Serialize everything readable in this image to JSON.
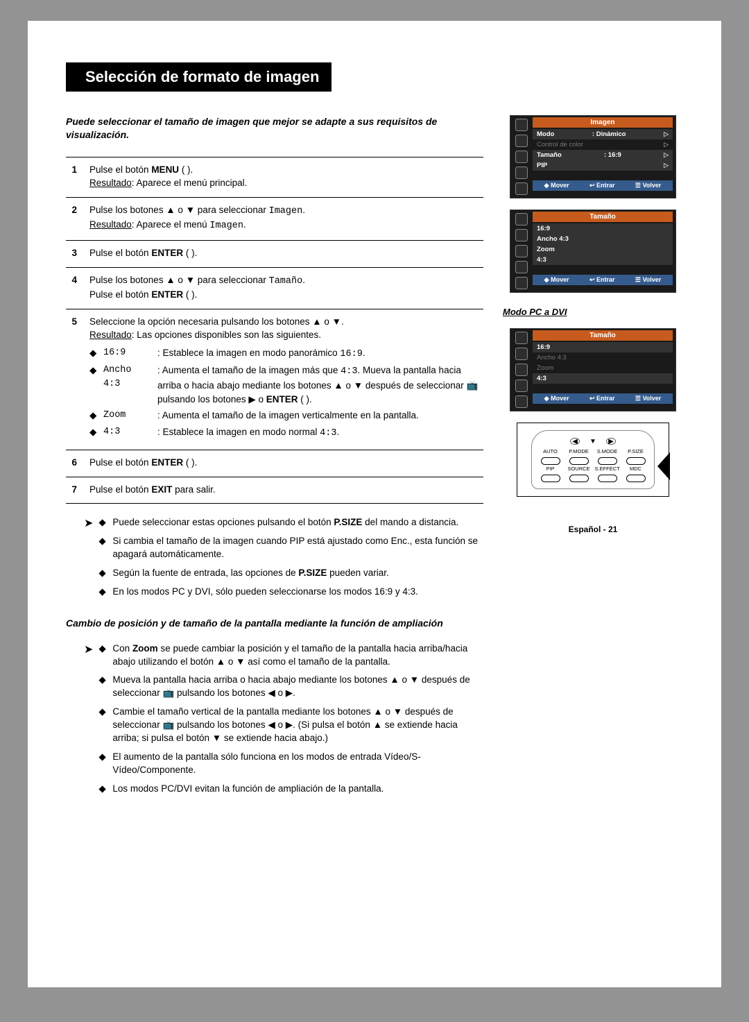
{
  "title": "Selección de formato de imagen",
  "intro": "Puede seleccionar el tamaño de imagen que mejor se adapte a sus requisitos de visualización.",
  "steps": {
    "s1_a": "Pulse el botón ",
    "s1_menu": "MENU",
    "s1_b": " (        ).",
    "s1_res_lbl": "Resultado",
    "s1_res": ": Aparece el menú principal.",
    "s2_a": "Pulse los botones ▲ o ▼ para seleccionar ",
    "s2_img": "Imagen",
    "s2_b": ".",
    "s2_res_lbl": "Resultado",
    "s2_res_a": ": Aparece el menú ",
    "s2_res_b": "Imagen",
    "s2_res_c": ".",
    "s3_a": "Pulse el botón ",
    "s3_enter": "ENTER",
    "s3_b": " (      ).",
    "s4_a": "Pulse los botones ▲ o ▼ para seleccionar ",
    "s4_t": "Tamaño",
    "s4_b": ".",
    "s4_c": "Pulse el botón ",
    "s4_enter": "ENTER",
    "s4_d": " (      ).",
    "s5_a": "Seleccione la opción necesaria pulsando los botones ▲ o ▼.",
    "s5_res_lbl": "Resultado",
    "s5_res": ": Las opciones disponibles son las siguientes.",
    "opt_169_lbl": "16:9",
    "opt_169_txt_a": ": Establece la imagen en modo panorámico ",
    "opt_169_txt_b": "16:9",
    "opt_169_txt_c": ".",
    "opt_a43_lbl": "Ancho 4:3",
    "opt_a43_txt_a": ": Aumenta el tamaño de la imagen más que ",
    "opt_a43_txt_b": "4:3",
    "opt_a43_txt_c": ". Mueva la pantalla hacia arriba o hacia abajo mediante los botones ▲ o ▼ después de seleccionar 📺 pulsando los botones ▶ o ",
    "opt_a43_enter": "ENTER",
    "opt_a43_txt_d": " (      ).",
    "opt_zoom_lbl": "Zoom",
    "opt_zoom_txt": ": Aumenta el tamaño de la imagen verticalmente en la pantalla.",
    "opt_43_lbl": "4:3",
    "opt_43_txt_a": ": Establece la imagen en modo normal ",
    "opt_43_txt_b": "4:3",
    "opt_43_txt_c": ".",
    "s6_a": "Pulse el botón ",
    "s6_enter": "ENTER",
    "s6_b": " (      ).",
    "s7_a": "Pulse el botón ",
    "s7_exit": "EXIT",
    "s7_b": " para salir."
  },
  "tips1": {
    "t1_a": "Puede seleccionar estas opciones pulsando el botón ",
    "t1_b": "P.SIZE",
    "t1_c": " del mando a distancia.",
    "t2": "Si cambia el tamaño de la imagen cuando PIP está ajustado como Enc., esta función se apagará automáticamente.",
    "t3_a": "Según la fuente de entrada, las opciones de ",
    "t3_b": "P.SIZE",
    "t3_c": " pueden variar.",
    "t4": "En los modos PC y DVI, sólo pueden seleccionarse los modos 16:9 y 4:3."
  },
  "subhead": "Cambio de posición y de tamaño de la pantalla mediante la función de ampliación",
  "tips2": {
    "t1_a": "Con ",
    "t1_b": "Zoom",
    "t1_c": " se puede cambiar la posición y el tamaño de la pantalla hacia arriba/hacia abajo utilizando el botón ▲ o ▼ así como el tamaño de la pantalla.",
    "t2": "Mueva la pantalla hacia arriba o hacia abajo mediante los botones ▲ o ▼ después de seleccionar 📺 pulsando los botones ◀ o ▶.",
    "t3": "Cambie el tamaño vertical de la pantalla mediante los botones ▲ o ▼ después de seleccionar 📺 pulsando los botones ◀ o ▶. (Si pulsa el botón ▲ se extiende hacia arriba; si pulsa el botón ▼ se extiende hacia abajo.)",
    "t4": "El aumento de la pantalla sólo funciona en los modos de entrada Vídeo/S-Vídeo/Componente.",
    "t5": "Los modos PC/DVI evitan la función de ampliación de la pantalla."
  },
  "osd1": {
    "title": "Imagen",
    "modo": "Modo",
    "modo_val": ": Dinámico",
    "control": "Control de color",
    "tamano": "Tamaño",
    "tamano_val": ": 16:9",
    "pip": "PIP",
    "mover": "Mover",
    "entrar": "Entrar",
    "volver": "Volver"
  },
  "osd2": {
    "title": "Tamaño",
    "i1": "16:9",
    "i2": "Ancho 4:3",
    "i3": "Zoom",
    "i4": "4:3",
    "mover": "Mover",
    "entrar": "Entrar",
    "volver": "Volver"
  },
  "dvi_caption": "Modo PC a DVI",
  "osd3": {
    "title": "Tamaño",
    "i1": "16:9",
    "i2": "Ancho 4:3",
    "i3": "Zoom",
    "i4": "4:3",
    "mover": "Mover",
    "entrar": "Entrar",
    "volver": "Volver"
  },
  "remote": {
    "r1": [
      "AUTO",
      "P.MODE",
      "S.MODE",
      "P.SIZE"
    ],
    "r2": [
      "PIP",
      "SOURCE",
      "S.EFFECT",
      "MDC"
    ]
  },
  "footer": "Español - 21",
  "glyphs": {
    "diamond": "◆",
    "tip_arrow": "➤",
    "tri_r": "▷",
    "updown": "◆",
    "enter": "↩",
    "menu": "☰"
  }
}
